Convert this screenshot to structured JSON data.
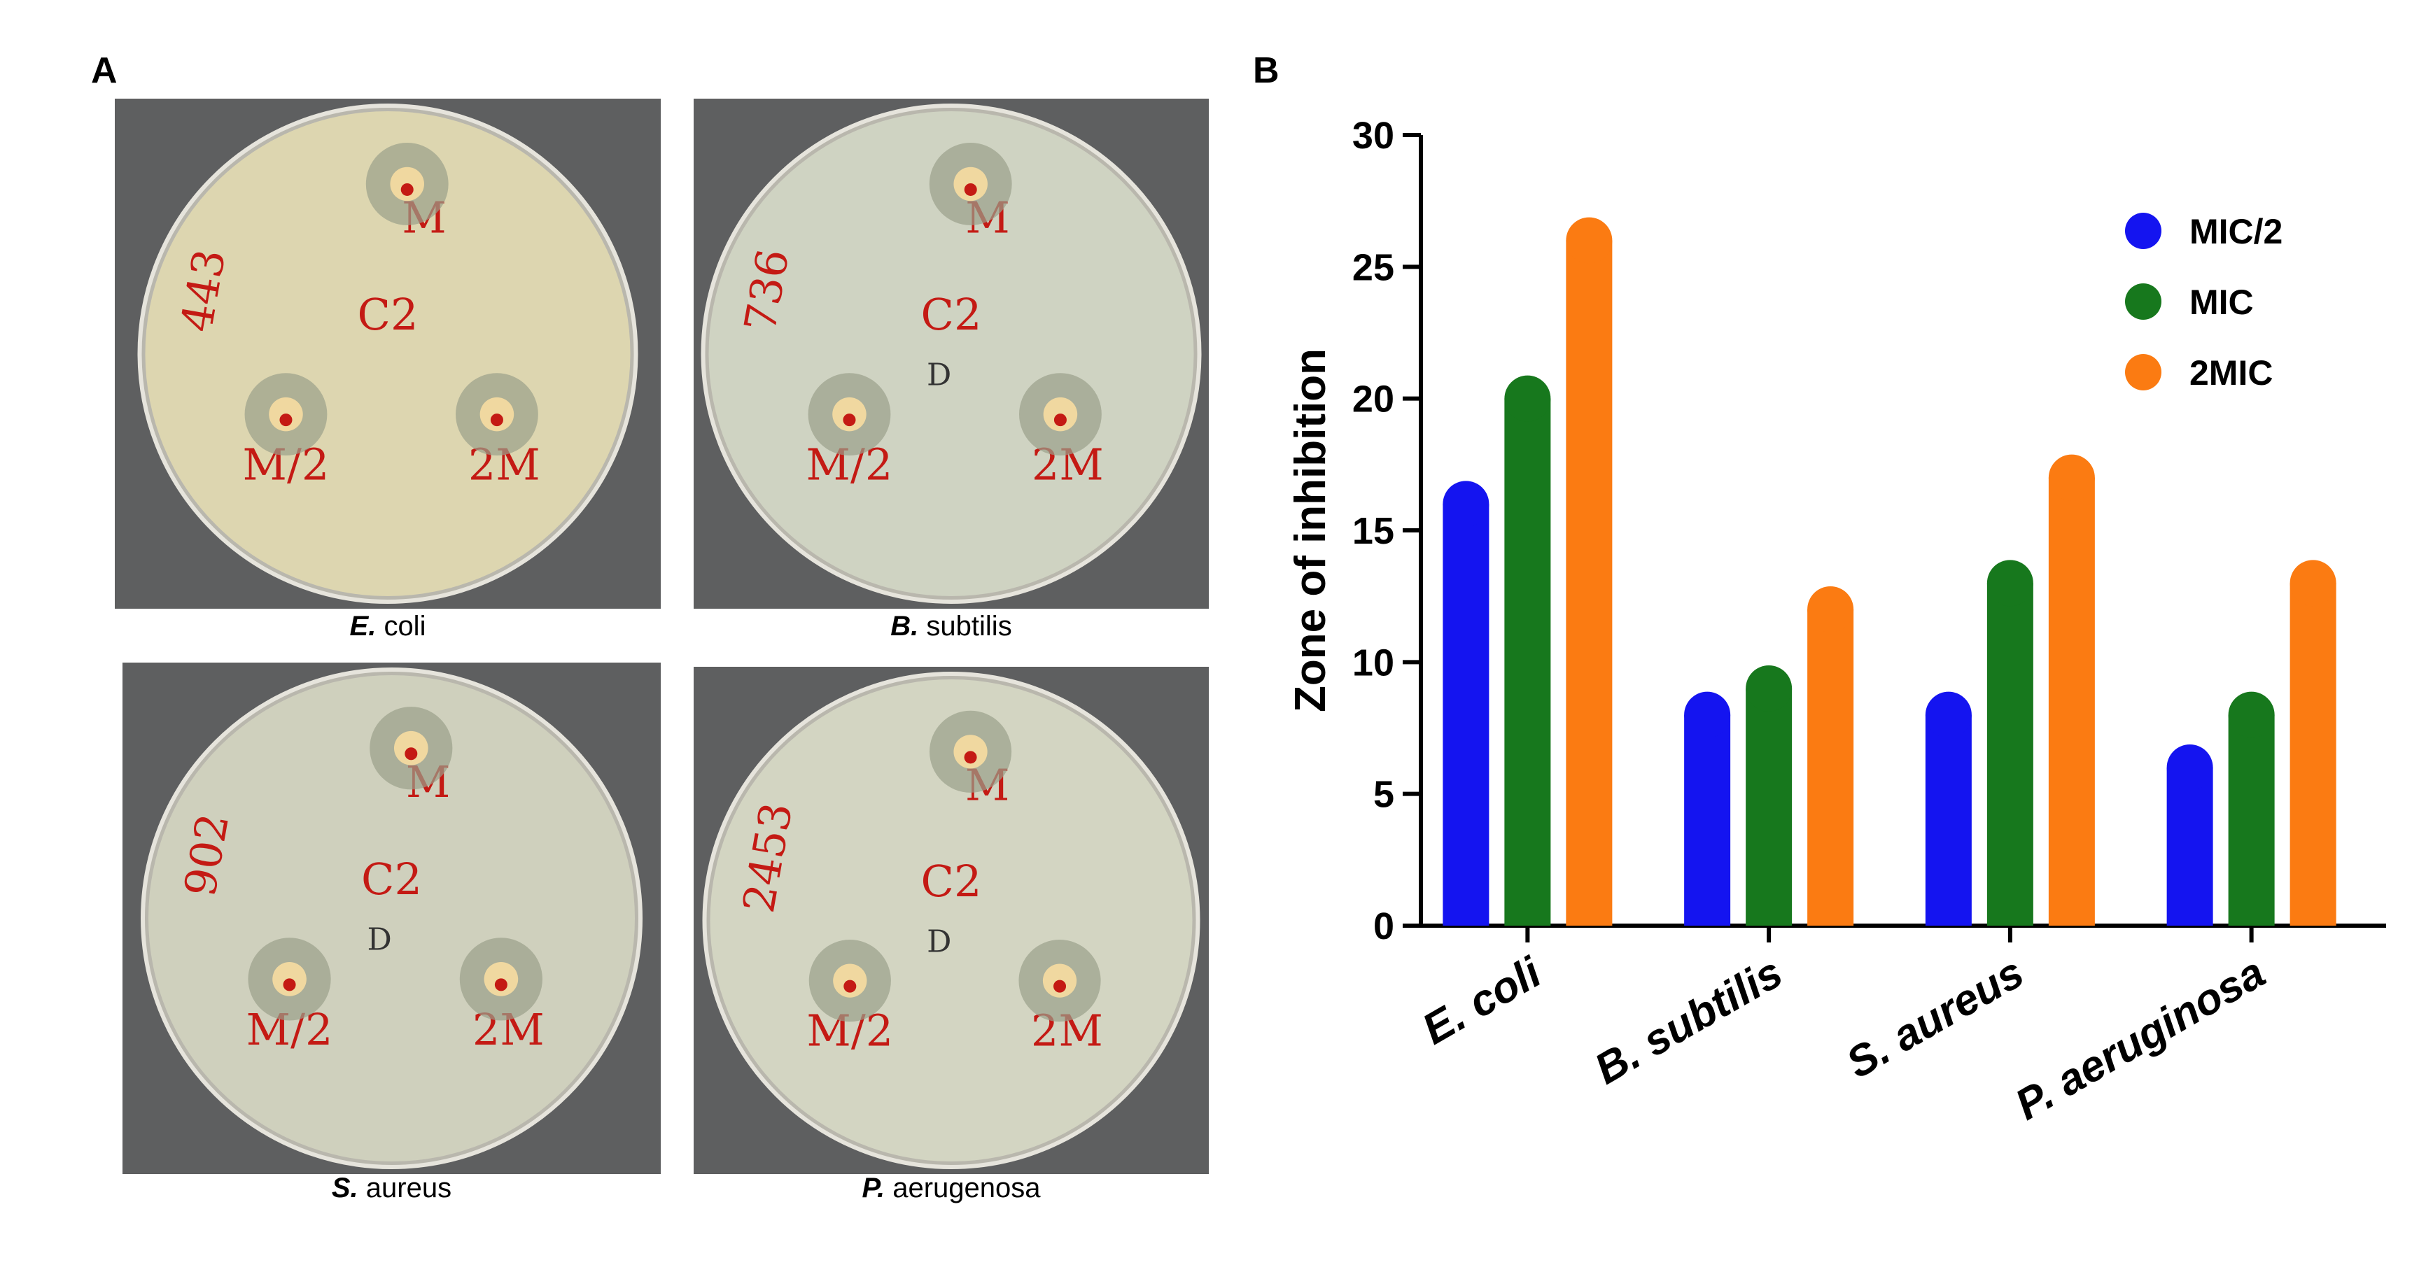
{
  "panels": {
    "a_label": "A",
    "b_label": "B",
    "plates": [
      {
        "genus": "E.",
        "species": "coli",
        "number": "443",
        "marks": [
          "M",
          "C2",
          "M/2",
          "2M"
        ]
      },
      {
        "genus": "B.",
        "species": "subtilis",
        "number": "736",
        "marks": [
          "M",
          "C2",
          "M/2",
          "2M",
          "D"
        ]
      },
      {
        "genus": "S.",
        "species": "aureus",
        "number": "902",
        "marks": [
          "M",
          "C2",
          "M/2",
          "2M",
          "D"
        ]
      },
      {
        "genus": "P.",
        "species": "aerugenosa",
        "number": "2453",
        "marks": [
          "M",
          "C2",
          "M/2",
          "2M",
          "D"
        ]
      }
    ]
  },
  "chart_data": {
    "type": "bar",
    "y_label": "Zone of inhibition",
    "categories": [
      "E. coli",
      "B. subtilis",
      "S. aureus",
      "P. aeruginosa"
    ],
    "series": [
      {
        "name": "MIC/2",
        "color": "#1414f0",
        "values": [
          16,
          8,
          8,
          6
        ]
      },
      {
        "name": "MIC",
        "color": "#17781d",
        "values": [
          20,
          9,
          13,
          8
        ]
      },
      {
        "name": "2MIC",
        "color": "#fb7b12",
        "values": [
          26,
          12,
          17,
          13
        ]
      }
    ],
    "ylim": [
      0,
      30
    ],
    "yticks": [
      0,
      5,
      10,
      15,
      20,
      25,
      30
    ],
    "grid": false,
    "legend": "top-right"
  }
}
